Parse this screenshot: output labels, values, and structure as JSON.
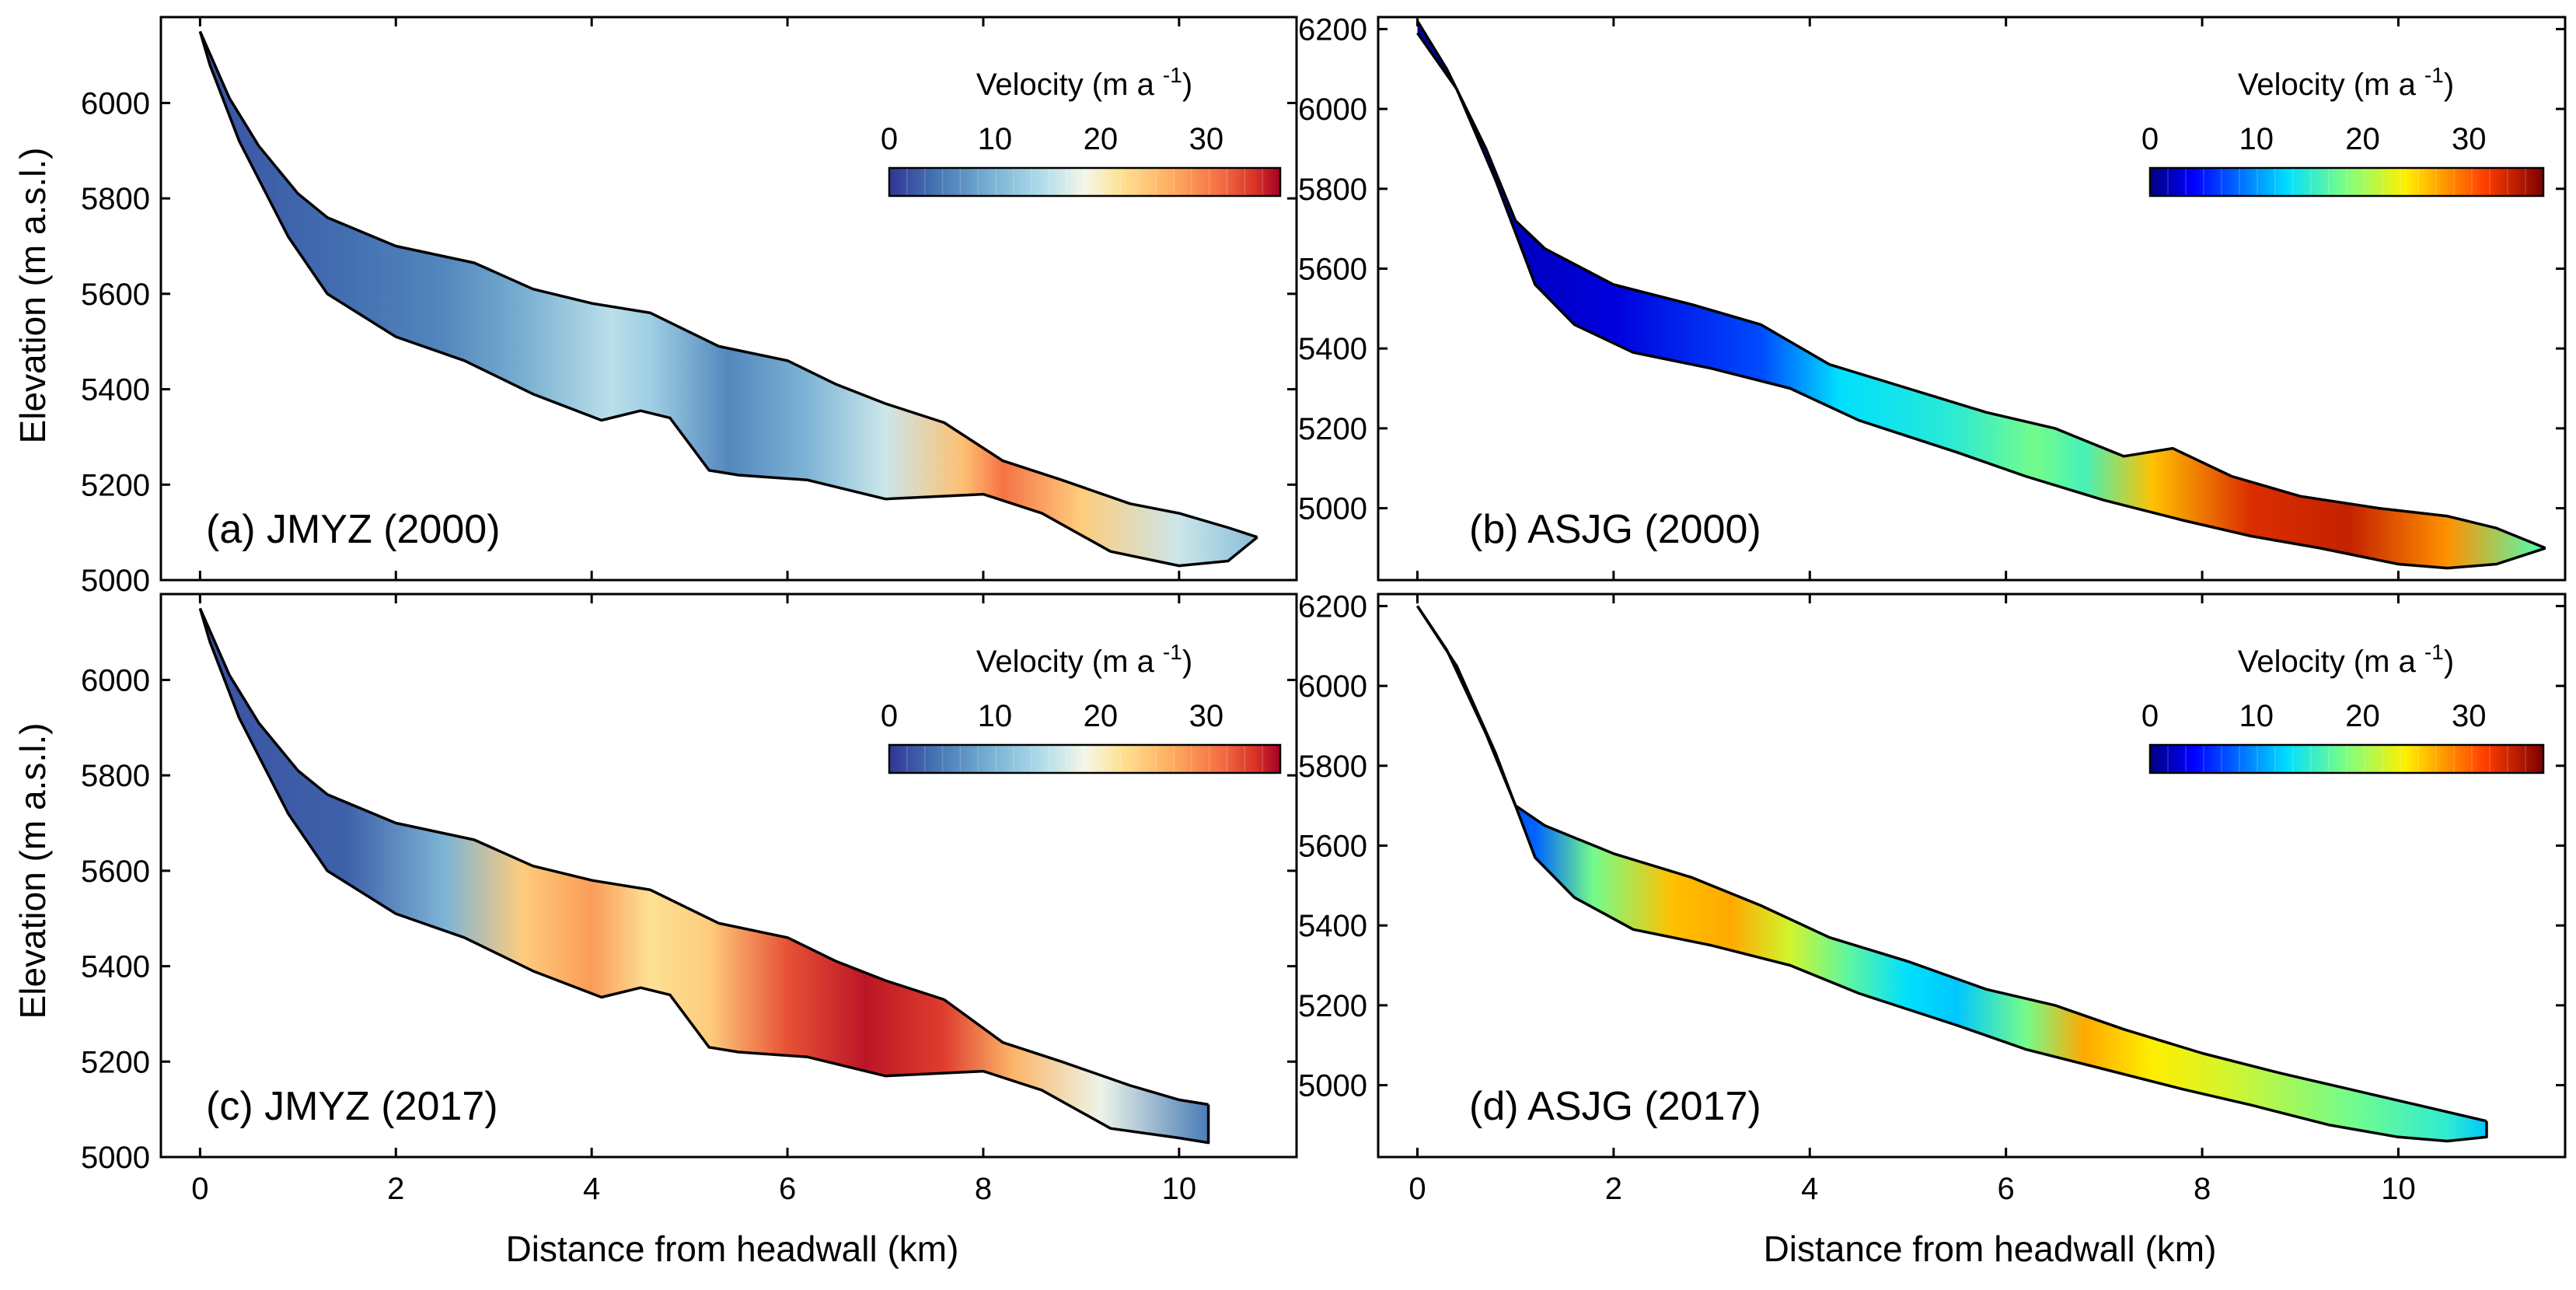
{
  "figure": {
    "xlabel": "Distance from headwall (km)",
    "ylabel": "Elevation (m a.s.l.)",
    "colorbar_title": "Velocity (m a",
    "colorbar_title_exp": "-1",
    "colorbar_title_close": ")"
  },
  "chart_data": [
    {
      "id": "a",
      "type": "heatmap",
      "label": "(a) JMYZ (2000)",
      "colormap": "RdYlBu_r",
      "xlim": [
        -0.4,
        11.2
      ],
      "ylim": [
        5000,
        6180
      ],
      "xticks": [
        0,
        2,
        4,
        6,
        8,
        10
      ],
      "yticks": [
        5000,
        5200,
        5400,
        5600,
        5800,
        6000
      ],
      "colorbar_range": [
        0,
        37
      ],
      "colorbar_ticks": [
        0,
        10,
        20,
        30
      ],
      "surface": [
        [
          0,
          6150
        ],
        [
          0.3,
          6010
        ],
        [
          0.6,
          5910
        ],
        [
          1.0,
          5810
        ],
        [
          1.3,
          5760
        ],
        [
          2.0,
          5700
        ],
        [
          2.8,
          5665
        ],
        [
          3.4,
          5610
        ],
        [
          4.0,
          5580
        ],
        [
          4.6,
          5560
        ],
        [
          5.3,
          5490
        ],
        [
          6.0,
          5460
        ],
        [
          6.5,
          5410
        ],
        [
          7.0,
          5370
        ],
        [
          7.6,
          5330
        ],
        [
          8.2,
          5250
        ],
        [
          8.8,
          5210
        ],
        [
          9.5,
          5160
        ],
        [
          10.0,
          5140
        ],
        [
          10.5,
          5110
        ],
        [
          10.8,
          5090
        ]
      ],
      "bed": [
        [
          10.8,
          5090
        ],
        [
          10.5,
          5040
        ],
        [
          10.0,
          5030
        ],
        [
          9.3,
          5060
        ],
        [
          8.6,
          5140
        ],
        [
          8.0,
          5180
        ],
        [
          7.0,
          5170
        ],
        [
          6.2,
          5210
        ],
        [
          5.5,
          5220
        ],
        [
          5.2,
          5230
        ],
        [
          4.8,
          5340
        ],
        [
          4.5,
          5355
        ],
        [
          4.1,
          5335
        ],
        [
          3.4,
          5390
        ],
        [
          2.7,
          5460
        ],
        [
          2.0,
          5510
        ],
        [
          1.3,
          5600
        ],
        [
          0.9,
          5720
        ],
        [
          0.4,
          5920
        ],
        [
          0.1,
          6080
        ],
        [
          0,
          6150
        ]
      ],
      "velocity_profile": [
        [
          0,
          2
        ],
        [
          1.5,
          4
        ],
        [
          2.5,
          6
        ],
        [
          3.2,
          9
        ],
        [
          4.2,
          15
        ],
        [
          4.6,
          13
        ],
        [
          5.4,
          6
        ],
        [
          6.2,
          10
        ],
        [
          7.0,
          16
        ],
        [
          7.8,
          25
        ],
        [
          8.2,
          31
        ],
        [
          9.0,
          24
        ],
        [
          10.0,
          16
        ],
        [
          10.8,
          11
        ]
      ]
    },
    {
      "id": "b",
      "type": "heatmap",
      "label": "(b) ASJG (2000)",
      "colormap": "jet",
      "xlim": [
        -0.4,
        11.7
      ],
      "ylim": [
        4820,
        6230
      ],
      "xticks": [
        0,
        2,
        4,
        6,
        8,
        10
      ],
      "yticks": [
        5000,
        5200,
        5400,
        5600,
        5800,
        6000,
        6200
      ],
      "colorbar_range": [
        0,
        37
      ],
      "colorbar_ticks": [
        0,
        10,
        20,
        30
      ],
      "surface": [
        [
          0,
          6220
        ],
        [
          0.3,
          6100
        ],
        [
          0.7,
          5900
        ],
        [
          1.0,
          5720
        ],
        [
          1.3,
          5650
        ],
        [
          2.0,
          5560
        ],
        [
          2.8,
          5510
        ],
        [
          3.5,
          5460
        ],
        [
          4.2,
          5360
        ],
        [
          5.0,
          5300
        ],
        [
          5.8,
          5240
        ],
        [
          6.5,
          5200
        ],
        [
          7.2,
          5130
        ],
        [
          7.7,
          5150
        ],
        [
          8.3,
          5080
        ],
        [
          9.0,
          5030
        ],
        [
          9.8,
          5000
        ],
        [
          10.5,
          4980
        ],
        [
          11.0,
          4950
        ],
        [
          11.5,
          4900
        ]
      ],
      "bed": [
        [
          11.5,
          4900
        ],
        [
          11.0,
          4860
        ],
        [
          10.5,
          4850
        ],
        [
          10.0,
          4860
        ],
        [
          9.2,
          4900
        ],
        [
          8.5,
          4930
        ],
        [
          7.8,
          4970
        ],
        [
          7.0,
          5020
        ],
        [
          6.2,
          5080
        ],
        [
          5.5,
          5140
        ],
        [
          4.5,
          5220
        ],
        [
          3.8,
          5300
        ],
        [
          3.0,
          5350
        ],
        [
          2.2,
          5390
        ],
        [
          1.6,
          5460
        ],
        [
          1.2,
          5560
        ],
        [
          0.8,
          5820
        ],
        [
          0.4,
          6050
        ],
        [
          0,
          6190
        ]
      ],
      "velocity_profile": [
        [
          0,
          1
        ],
        [
          2,
          3
        ],
        [
          3.5,
          7
        ],
        [
          4.3,
          13
        ],
        [
          5.0,
          14
        ],
        [
          5.5,
          15
        ],
        [
          6.3,
          18
        ],
        [
          6.8,
          16
        ],
        [
          7.5,
          26
        ],
        [
          8.5,
          33
        ],
        [
          9.5,
          34
        ],
        [
          10.5,
          28
        ],
        [
          11.4,
          17
        ]
      ]
    },
    {
      "id": "c",
      "type": "heatmap",
      "label": "(c) JMYZ (2017)",
      "colormap": "RdYlBu_r",
      "xlim": [
        -0.4,
        11.2
      ],
      "ylim": [
        5000,
        6180
      ],
      "xticks": [
        0,
        2,
        4,
        6,
        8,
        10
      ],
      "yticks": [
        5000,
        5200,
        5400,
        5600,
        5800,
        6000
      ],
      "colorbar_range": [
        0,
        37
      ],
      "colorbar_ticks": [
        0,
        10,
        20,
        30
      ],
      "surface": [
        [
          0,
          6150
        ],
        [
          0.3,
          6010
        ],
        [
          0.6,
          5910
        ],
        [
          1.0,
          5810
        ],
        [
          1.3,
          5760
        ],
        [
          2.0,
          5700
        ],
        [
          2.8,
          5665
        ],
        [
          3.4,
          5610
        ],
        [
          4.0,
          5580
        ],
        [
          4.6,
          5560
        ],
        [
          5.3,
          5490
        ],
        [
          6.0,
          5460
        ],
        [
          6.5,
          5410
        ],
        [
          7.0,
          5370
        ],
        [
          7.6,
          5330
        ],
        [
          8.2,
          5240
        ],
        [
          8.8,
          5200
        ],
        [
          9.5,
          5150
        ],
        [
          10.0,
          5120
        ],
        [
          10.3,
          5110
        ]
      ],
      "bed": [
        [
          10.3,
          5110
        ],
        [
          10.3,
          5030
        ],
        [
          10.0,
          5040
        ],
        [
          9.3,
          5060
        ],
        [
          8.6,
          5140
        ],
        [
          8.0,
          5180
        ],
        [
          7.0,
          5170
        ],
        [
          6.2,
          5210
        ],
        [
          5.5,
          5220
        ],
        [
          5.2,
          5230
        ],
        [
          4.8,
          5340
        ],
        [
          4.5,
          5355
        ],
        [
          4.1,
          5335
        ],
        [
          3.4,
          5390
        ],
        [
          2.7,
          5460
        ],
        [
          2.0,
          5510
        ],
        [
          1.3,
          5600
        ],
        [
          0.9,
          5720
        ],
        [
          0.4,
          5920
        ],
        [
          0.1,
          6080
        ],
        [
          0,
          6150
        ]
      ],
      "velocity_profile": [
        [
          0,
          2
        ],
        [
          1.5,
          3
        ],
        [
          2.5,
          10
        ],
        [
          3.3,
          24
        ],
        [
          4.0,
          28
        ],
        [
          4.6,
          22
        ],
        [
          5.2,
          24
        ],
        [
          6.0,
          33
        ],
        [
          6.8,
          36
        ],
        [
          7.6,
          34
        ],
        [
          8.3,
          26
        ],
        [
          9.2,
          18
        ],
        [
          10.3,
          5
        ]
      ]
    },
    {
      "id": "d",
      "type": "heatmap",
      "label": "(d) ASJG (2017)",
      "colormap": "jet",
      "xlim": [
        -0.4,
        11.7
      ],
      "ylim": [
        4820,
        6230
      ],
      "xticks": [
        0,
        2,
        4,
        6,
        8,
        10
      ],
      "yticks": [
        5000,
        5200,
        5400,
        5600,
        5800,
        6000,
        6200
      ],
      "colorbar_range": [
        0,
        37
      ],
      "colorbar_ticks": [
        0,
        10,
        20,
        30
      ],
      "surface": [
        [
          0,
          6200
        ],
        [
          0.3,
          6090
        ],
        [
          0.7,
          5880
        ],
        [
          1.0,
          5700
        ],
        [
          1.3,
          5650
        ],
        [
          2.0,
          5580
        ],
        [
          2.8,
          5520
        ],
        [
          3.5,
          5450
        ],
        [
          4.2,
          5370
        ],
        [
          5.0,
          5310
        ],
        [
          5.8,
          5240
        ],
        [
          6.5,
          5200
        ],
        [
          7.2,
          5140
        ],
        [
          8.0,
          5080
        ],
        [
          8.8,
          5030
        ],
        [
          9.5,
          4990
        ],
        [
          10.2,
          4950
        ],
        [
          10.9,
          4910
        ]
      ],
      "bed": [
        [
          10.9,
          4910
        ],
        [
          10.9,
          4870
        ],
        [
          10.5,
          4860
        ],
        [
          10.0,
          4870
        ],
        [
          9.3,
          4900
        ],
        [
          8.5,
          4950
        ],
        [
          7.8,
          4990
        ],
        [
          7.0,
          5040
        ],
        [
          6.2,
          5090
        ],
        [
          5.5,
          5150
        ],
        [
          4.5,
          5230
        ],
        [
          3.8,
          5300
        ],
        [
          3.0,
          5350
        ],
        [
          2.2,
          5390
        ],
        [
          1.6,
          5470
        ],
        [
          1.2,
          5570
        ],
        [
          0.8,
          5830
        ],
        [
          0.4,
          6050
        ],
        [
          0,
          6200
        ]
      ],
      "velocity_profile": [
        [
          0,
          2
        ],
        [
          1.2,
          8
        ],
        [
          1.8,
          18
        ],
        [
          2.6,
          26
        ],
        [
          3.2,
          27
        ],
        [
          3.8,
          22
        ],
        [
          4.4,
          17
        ],
        [
          5.0,
          13
        ],
        [
          5.5,
          12
        ],
        [
          6.2,
          18
        ],
        [
          6.8,
          27
        ],
        [
          7.5,
          24
        ],
        [
          8.3,
          22
        ],
        [
          9.5,
          18
        ],
        [
          10.5,
          15
        ],
        [
          10.9,
          12
        ]
      ]
    }
  ]
}
